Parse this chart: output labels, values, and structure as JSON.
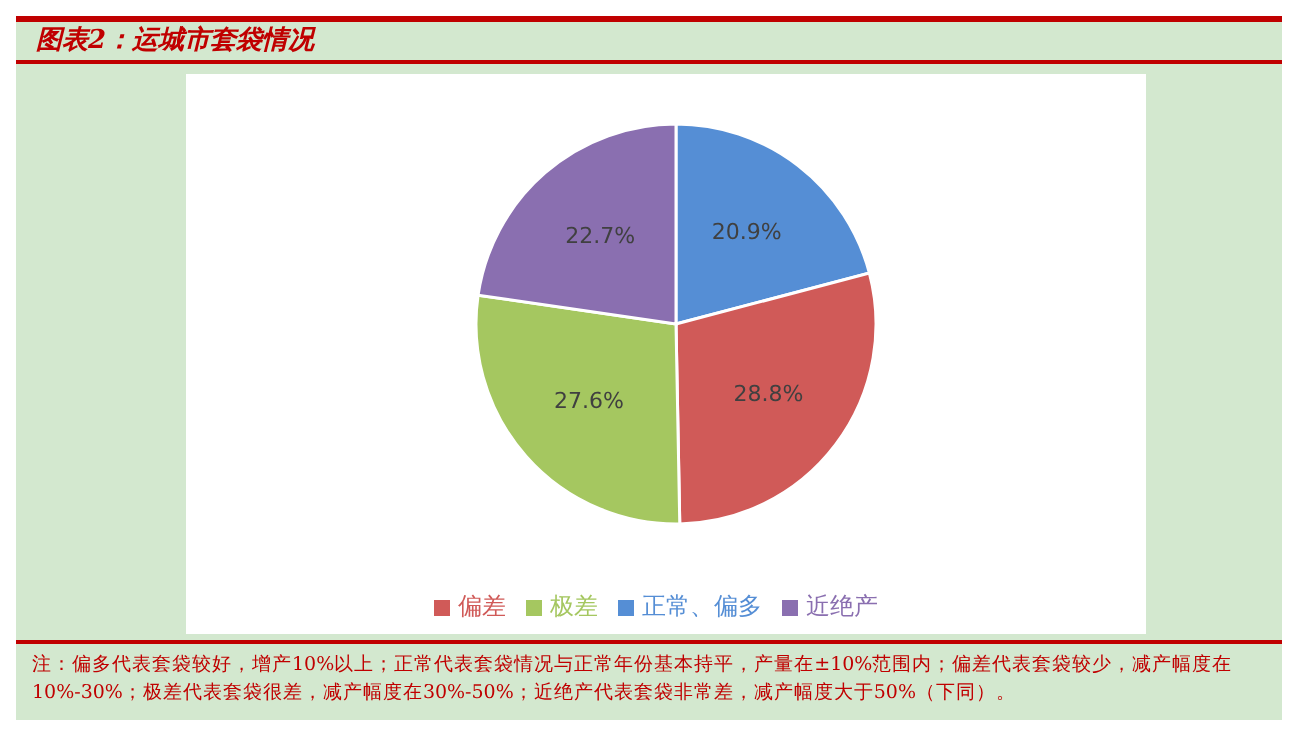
{
  "chart_data": {
    "type": "pie",
    "title": "图表2：运城市套袋情况",
    "categories": [
      "正常、偏多",
      "偏差",
      "极差",
      "近绝产"
    ],
    "values": [
      20.9,
      28.8,
      27.6,
      22.7
    ],
    "colors": [
      "#558ed5",
      "#d05a58",
      "#a5c760",
      "#8a6fb0"
    ],
    "value_labels": [
      "20.9%",
      "28.8%",
      "27.6%",
      "22.7%"
    ],
    "legend": "bottom",
    "annotations": [
      "注：偏多代表套袋较好，增产10%以上；正常代表套袋情况与正常年份基本持平，产量在±10%范围内；偏差代表套袋较少，减产幅度在10%-30%；极差代表套袋很差，减产幅度在30%-50%；近绝产代表套袋非常差，减产幅度大于50%（下同）。"
    ]
  }
}
